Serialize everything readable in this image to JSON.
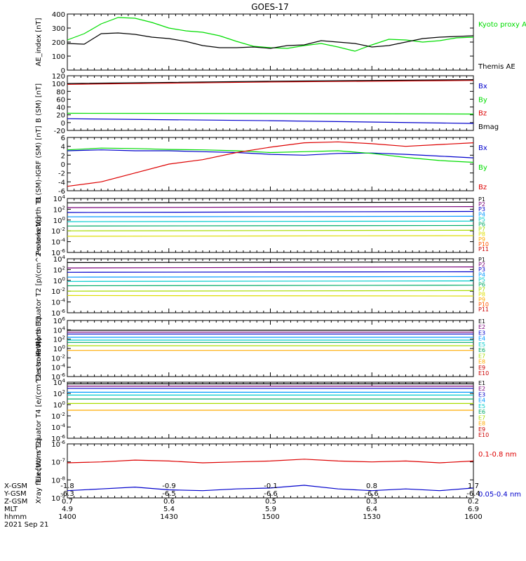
{
  "title": "GOES-17",
  "colors": {
    "black": "#000000",
    "green": "#00dd00",
    "blue": "#0000cc",
    "red": "#dd0000",
    "P1": "#000000",
    "P2": "#7a007a",
    "P3": "#0000cc",
    "P4": "#0099ff",
    "P5": "#00cccc",
    "P6": "#00aa66",
    "P7": "#aadd00",
    "P8": "#dddd00",
    "P9": "#ffaa00",
    "P10": "#ff5500",
    "P11": "#cc0000"
  },
  "x_axis": {
    "ticks": [
      "1400",
      "1430",
      "1500",
      "1530",
      "1600"
    ],
    "start_label": "1400",
    "end_label": "1600"
  },
  "orbit_table": {
    "rows": [
      {
        "label": "X-GSM",
        "values": [
          "-1.8",
          "-0.9",
          "-0.1",
          "0.8",
          "1.7"
        ]
      },
      {
        "label": "Y-GSM",
        "values": [
          "-6.3",
          "-6.5",
          "-6.6",
          "-6.6",
          "-6.4"
        ]
      },
      {
        "label": "Z-GSM",
        "values": [
          "0.7",
          "0.6",
          "0.5",
          "0.3",
          "0.2"
        ]
      },
      {
        "label": "MLT",
        "values": [
          "4.9",
          "5.4",
          "5.9",
          "6.4",
          "6.9"
        ]
      },
      {
        "label": "hhmm",
        "values": [
          "1400",
          "1430",
          "1500",
          "1530",
          "1600"
        ]
      }
    ],
    "date": "2021 Sep 21"
  },
  "chart_data": [
    {
      "type": "line",
      "ylabel": "AE_index [nT]",
      "ylim": [
        0,
        400
      ],
      "yticks": [
        "0",
        "100",
        "200",
        "300",
        "400"
      ],
      "series": [
        {
          "name": "Kyoto proxy AE",
          "color": "#00dd00",
          "x": [
            0,
            5,
            10,
            15,
            20,
            25,
            30,
            35,
            40,
            45,
            50,
            55,
            60,
            65,
            70,
            75,
            80,
            85,
            90,
            95,
            100,
            105,
            110,
            115,
            120
          ],
          "values": [
            215,
            260,
            330,
            375,
            370,
            340,
            300,
            280,
            270,
            245,
            205,
            170,
            160,
            155,
            175,
            190,
            165,
            135,
            180,
            220,
            215,
            200,
            210,
            230,
            235
          ]
        },
        {
          "name": "Themis AE",
          "color": "#000000",
          "x": [
            0,
            5,
            10,
            15,
            20,
            25,
            30,
            35,
            40,
            45,
            50,
            55,
            60,
            65,
            70,
            75,
            80,
            85,
            90,
            95,
            100,
            105,
            110,
            115,
            120
          ],
          "values": [
            190,
            185,
            260,
            265,
            255,
            235,
            225,
            205,
            175,
            160,
            160,
            165,
            155,
            175,
            180,
            210,
            200,
            190,
            165,
            175,
            200,
            225,
            235,
            240,
            245
          ]
        }
      ]
    },
    {
      "type": "line",
      "ylabel": "B (SM) [nT]",
      "ylim": [
        -20,
        120
      ],
      "yticks": [
        "-20",
        "0",
        "20",
        "40",
        "60",
        "80",
        "100",
        "120"
      ],
      "series": [
        {
          "name": "Bx",
          "color": "#0000cc",
          "x": [
            0,
            60,
            120
          ],
          "values": [
            10,
            5,
            -2
          ]
        },
        {
          "name": "By",
          "color": "#00dd00",
          "x": [
            0,
            60,
            120
          ],
          "values": [
            24,
            23,
            22
          ]
        },
        {
          "name": "Bz",
          "color": "#dd0000",
          "x": [
            0,
            60,
            120
          ],
          "values": [
            98,
            104,
            108
          ]
        },
        {
          "name": "Bmag",
          "color": "#000000",
          "x": [
            0,
            60,
            120
          ],
          "values": [
            100,
            106,
            110
          ]
        }
      ]
    },
    {
      "type": "line",
      "ylabel": "B (SM)-IGRF (SM) [nT]",
      "ylim": [
        -6,
        6
      ],
      "yticks": [
        "-6",
        "-4",
        "-2",
        "0",
        "2",
        "4",
        "6"
      ],
      "series": [
        {
          "name": "Bx",
          "color": "#0000cc",
          "x": [
            0,
            10,
            20,
            30,
            40,
            50,
            60,
            70,
            80,
            90,
            100,
            110,
            120
          ],
          "values": [
            3,
            3.2,
            3,
            3,
            2.8,
            2.6,
            2.2,
            2,
            2.4,
            2.5,
            2.2,
            1.8,
            1.4
          ]
        },
        {
          "name": "By",
          "color": "#00dd00",
          "x": [
            0,
            10,
            20,
            30,
            40,
            50,
            60,
            70,
            80,
            90,
            100,
            110,
            120
          ],
          "values": [
            3.2,
            3.6,
            3.5,
            3.3,
            3.2,
            3,
            2.6,
            2.8,
            3,
            2.4,
            1.5,
            0.8,
            0.4
          ]
        },
        {
          "name": "Bz",
          "color": "#dd0000",
          "x": [
            0,
            10,
            20,
            30,
            40,
            50,
            60,
            70,
            80,
            90,
            100,
            110,
            120
          ],
          "values": [
            -5,
            -4,
            -2,
            0,
            1,
            2.6,
            3.8,
            4.8,
            5,
            4.6,
            4,
            4.4,
            4.8
          ]
        }
      ]
    },
    {
      "type": "line",
      "ylabel": "Protons North T1",
      "yscale": "log",
      "ylim": [
        -6,
        4
      ],
      "yticks": [
        "10^-6",
        "10^-4",
        "10^-2",
        "10^0",
        "10^2",
        "10^4"
      ],
      "series": [
        {
          "name": "P1",
          "color": "#000000",
          "x": [
            0,
            120
          ],
          "values": [
            3.2,
            3.3
          ]
        },
        {
          "name": "P2",
          "color": "#7a007a",
          "x": [
            0,
            120
          ],
          "values": [
            2.3,
            2.5
          ]
        },
        {
          "name": "P3",
          "color": "#0000cc",
          "x": [
            0,
            120
          ],
          "values": [
            1.4,
            1.6
          ]
        },
        {
          "name": "P4",
          "color": "#0099ff",
          "x": [
            0,
            120
          ],
          "values": [
            0.6,
            0.7
          ]
        },
        {
          "name": "P5",
          "color": "#00cccc",
          "x": [
            0,
            120
          ],
          "values": [
            -0.3,
            -0.2
          ]
        },
        {
          "name": "P6",
          "color": "#00aa66",
          "x": [
            0,
            120
          ],
          "values": [
            -1.1,
            -1
          ]
        },
        {
          "name": "P7",
          "color": "#aadd00",
          "x": [
            0,
            120
          ],
          "values": [
            -2,
            -1.9
          ]
        },
        {
          "name": "P8",
          "color": "#dddd00",
          "x": [
            0,
            120
          ],
          "values": [
            -3,
            -2.9
          ]
        },
        {
          "name": "P9",
          "color": "#ffaa00",
          "x": [],
          "values": []
        },
        {
          "name": "P10",
          "color": "#ff5500",
          "x": [],
          "values": []
        },
        {
          "name": "P11",
          "color": "#cc0000",
          "x": [],
          "values": []
        }
      ]
    },
    {
      "type": "line",
      "ylabel": "Protons Equator T2 [p/(cm^2-s-sr-keV)]",
      "yscale": "log",
      "ylim": [
        -6,
        4
      ],
      "yticks": [
        "10^-6",
        "10^-4",
        "10^-2",
        "10^0",
        "10^2",
        "10^4"
      ],
      "series": [
        {
          "name": "P1",
          "color": "#000000",
          "x": [
            0,
            120
          ],
          "values": [
            3.3,
            3.4
          ]
        },
        {
          "name": "P2",
          "color": "#7a007a",
          "x": [
            0,
            120
          ],
          "values": [
            2.3,
            2.5
          ]
        },
        {
          "name": "P3",
          "color": "#0000cc",
          "x": [
            0,
            120
          ],
          "values": [
            1.5,
            1.6
          ]
        },
        {
          "name": "P4",
          "color": "#0099ff",
          "x": [
            0,
            120
          ],
          "values": [
            0.6,
            0.7
          ]
        },
        {
          "name": "P5",
          "color": "#00cccc",
          "x": [
            0,
            120
          ],
          "values": [
            -0.2,
            -0.1
          ]
        },
        {
          "name": "P6",
          "color": "#00aa66",
          "x": [
            0,
            120
          ],
          "values": [
            -1,
            -0.9
          ]
        },
        {
          "name": "P7",
          "color": "#aadd00",
          "x": [
            0,
            120
          ],
          "values": [
            -2,
            -1.9
          ]
        },
        {
          "name": "P8",
          "color": "#dddd00",
          "x": [
            0,
            120
          ],
          "values": [
            -2.8,
            -2.9
          ]
        },
        {
          "name": "P9",
          "color": "#ffaa00",
          "x": [],
          "values": []
        },
        {
          "name": "P10",
          "color": "#ff5500",
          "x": [],
          "values": []
        },
        {
          "name": "P11",
          "color": "#cc0000",
          "x": [],
          "values": []
        }
      ]
    },
    {
      "type": "line",
      "ylabel": "Electrons North T3",
      "yscale": "log",
      "ylim": [
        -6,
        6
      ],
      "yticks": [
        "10^-6",
        "10^-4",
        "10^-2",
        "10^0",
        "10^2",
        "10^4",
        "10^6"
      ],
      "series": [
        {
          "name": "E1",
          "color": "#000000",
          "x": [
            0,
            120
          ],
          "values": [
            3.9,
            3.9
          ]
        },
        {
          "name": "E2",
          "color": "#7a007a",
          "x": [
            0,
            120
          ],
          "values": [
            3.5,
            3.5
          ]
        },
        {
          "name": "E3",
          "color": "#0000cc",
          "x": [
            0,
            120
          ],
          "values": [
            3.1,
            3.1
          ]
        },
        {
          "name": "E4",
          "color": "#0099ff",
          "x": [
            0,
            120
          ],
          "values": [
            2.4,
            2.4
          ]
        },
        {
          "name": "E5",
          "color": "#00cccc",
          "x": [
            0,
            120
          ],
          "values": [
            1.8,
            1.8
          ]
        },
        {
          "name": "E6",
          "color": "#00aa66",
          "x": [
            0,
            120
          ],
          "values": [
            1.3,
            1.3
          ]
        },
        {
          "name": "E7",
          "color": "#aadd00",
          "x": [
            0,
            120
          ],
          "values": [
            0.6,
            0.6
          ]
        },
        {
          "name": "E8",
          "color": "#ffaa00",
          "x": [
            0,
            120
          ],
          "values": [
            -0.4,
            -0.4
          ]
        },
        {
          "name": "E9",
          "color": "#cc0000",
          "x": [],
          "values": []
        },
        {
          "name": "E10",
          "color": "#cc0000",
          "x": [],
          "values": []
        }
      ]
    },
    {
      "type": "line",
      "ylabel": "Electrons Equator T4 [e/(cm^2-s-sr-keV)]",
      "yscale": "log",
      "ylim": [
        -6,
        4
      ],
      "yticks": [
        "10^-6",
        "10^-4",
        "10^-2",
        "10^0",
        "10^2",
        "10^4"
      ],
      "series": [
        {
          "name": "E1",
          "color": "#000000",
          "x": [
            0,
            120
          ],
          "values": [
            3.7,
            3.7
          ]
        },
        {
          "name": "E2",
          "color": "#7a007a",
          "x": [
            0,
            120
          ],
          "values": [
            3.3,
            3.3
          ]
        },
        {
          "name": "E3",
          "color": "#0000cc",
          "x": [
            0,
            120
          ],
          "values": [
            2.9,
            2.9
          ]
        },
        {
          "name": "E4",
          "color": "#0099ff",
          "x": [
            0,
            120
          ],
          "values": [
            2.2,
            2.2
          ]
        },
        {
          "name": "E5",
          "color": "#00cccc",
          "x": [
            0,
            120
          ],
          "values": [
            1.7,
            1.7
          ]
        },
        {
          "name": "E6",
          "color": "#00aa66",
          "x": [
            0,
            120
          ],
          "values": [
            1,
            1
          ]
        },
        {
          "name": "E7",
          "color": "#aadd00",
          "x": [
            0,
            120
          ],
          "values": [
            0.2,
            0.2
          ]
        },
        {
          "name": "E8",
          "color": "#ffaa00",
          "x": [
            0,
            120
          ],
          "values": [
            -1,
            -1
          ]
        },
        {
          "name": "E9",
          "color": "#cc0000",
          "x": [],
          "values": []
        },
        {
          "name": "E10",
          "color": "#cc0000",
          "x": [],
          "values": []
        }
      ]
    },
    {
      "type": "line",
      "ylabel": "Xray flux [W/m^2]",
      "yscale": "log",
      "ylim": [
        -9,
        -6
      ],
      "yticks": [
        "10^-9",
        "10^-8",
        "10^-7",
        "10^-6"
      ],
      "series": [
        {
          "name": "0.1-0.8 nm",
          "color": "#dd0000",
          "x": [
            0,
            10,
            20,
            30,
            40,
            50,
            60,
            70,
            80,
            90,
            100,
            110,
            120
          ],
          "values": [
            -7.05,
            -7.0,
            -6.9,
            -6.95,
            -7.05,
            -7.0,
            -6.95,
            -6.85,
            -6.95,
            -7.0,
            -6.95,
            -7.05,
            -6.95
          ]
        },
        {
          "name": "0.05-0.4 nm",
          "color": "#0000cc",
          "x": [
            0,
            10,
            20,
            30,
            40,
            50,
            60,
            70,
            80,
            90,
            100,
            110,
            120
          ],
          "values": [
            -8.6,
            -8.5,
            -8.4,
            -8.55,
            -8.6,
            -8.5,
            -8.45,
            -8.3,
            -8.5,
            -8.6,
            -8.5,
            -8.6,
            -8.45
          ]
        }
      ]
    }
  ]
}
